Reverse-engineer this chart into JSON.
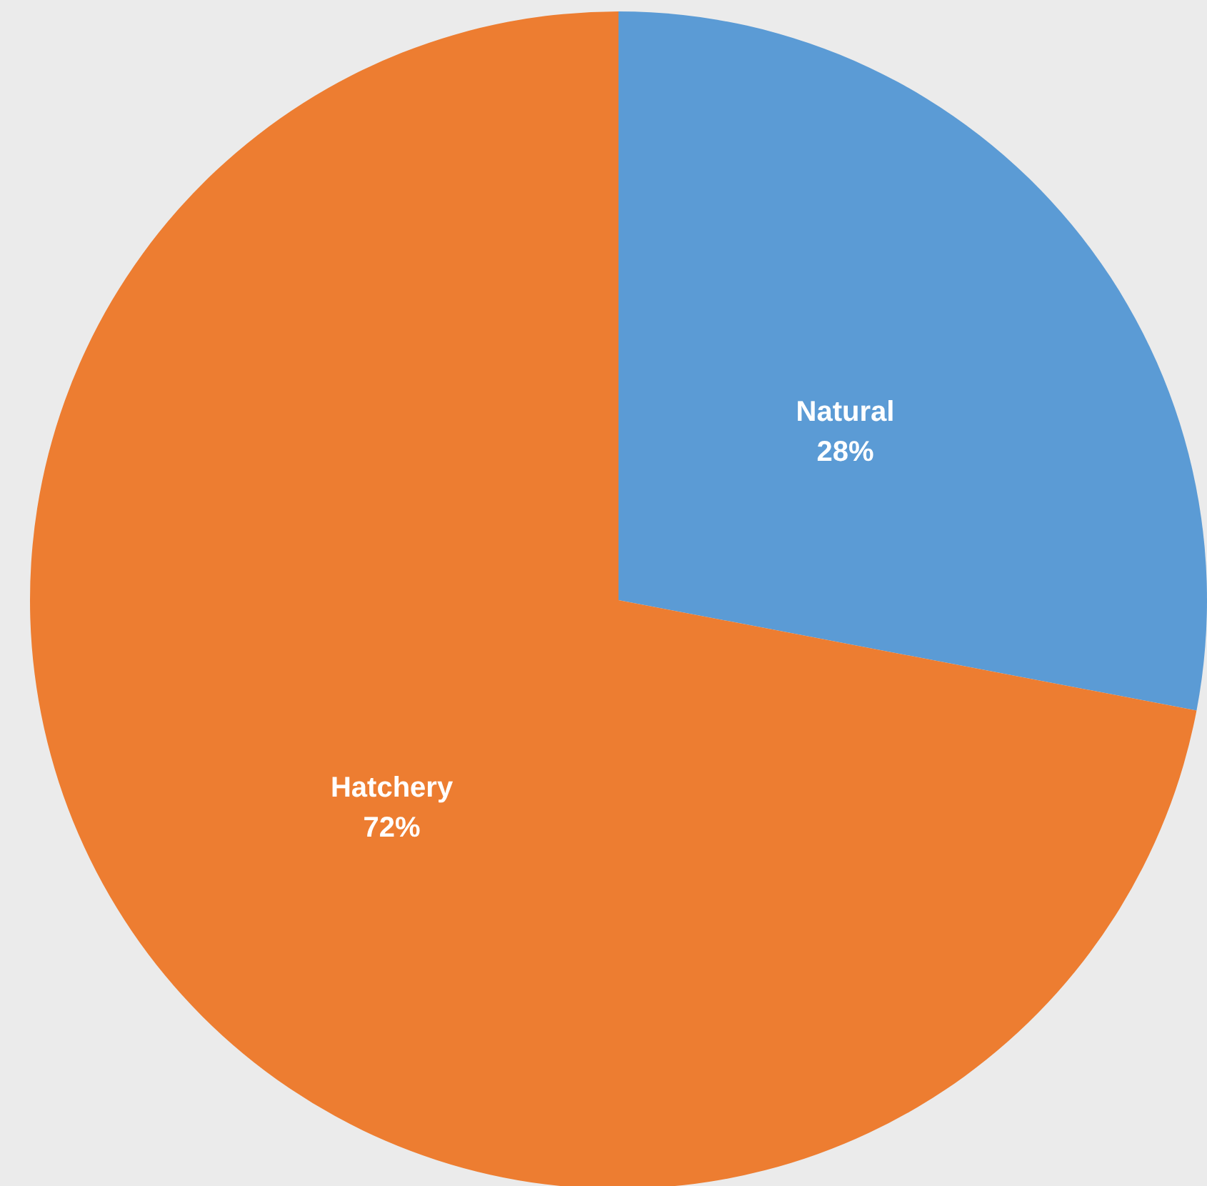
{
  "chart_data": {
    "type": "pie",
    "categories": [
      "Natural",
      "Hatchery"
    ],
    "values": [
      28,
      72
    ],
    "colors": [
      "#5b9bd5",
      "#ed7d31"
    ],
    "value_labels": [
      "28%",
      "72%"
    ]
  }
}
